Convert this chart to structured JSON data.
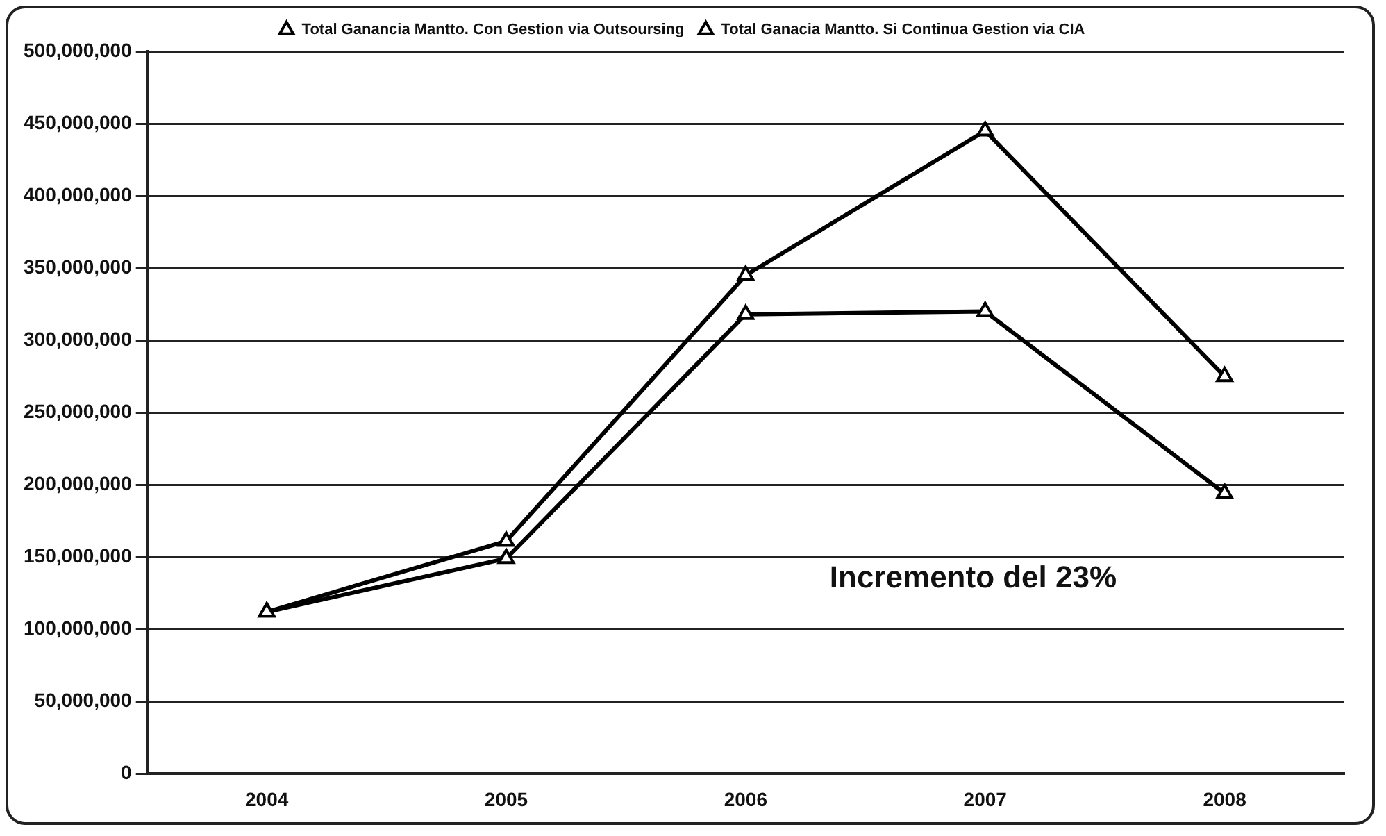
{
  "chart_data": {
    "type": "line",
    "categories": [
      "2004",
      "2005",
      "2006",
      "2007",
      "2008"
    ],
    "series": [
      {
        "name": "Total Ganancia Mantto. Con Gestion via Outsoursing",
        "color": "#000000",
        "values": [
          112000000,
          161000000,
          345000000,
          445000000,
          275000000
        ]
      },
      {
        "name": "Total Ganacia Mantto. Si Continua Gestion via CIA",
        "color": "#000000",
        "values": [
          112000000,
          149000000,
          318000000,
          320000000,
          194000000
        ]
      }
    ],
    "ylim": [
      0,
      500000000
    ],
    "yticks": [
      {
        "value": 0,
        "label": "0"
      },
      {
        "value": 50000000,
        "label": "50,000,000"
      },
      {
        "value": 100000000,
        "label": "100,000,000"
      },
      {
        "value": 150000000,
        "label": "150,000,000"
      },
      {
        "value": 200000000,
        "label": "200,000,000"
      },
      {
        "value": 250000000,
        "label": "250,000,000"
      },
      {
        "value": 300000000,
        "label": "300,000,000"
      },
      {
        "value": 350000000,
        "label": "350,000,000"
      },
      {
        "value": 400000000,
        "label": "400,000,000"
      },
      {
        "value": 450000000,
        "label": "450,000,000"
      },
      {
        "value": 500000000,
        "label": "500,000,000"
      }
    ],
    "grid": "y",
    "legend": "top",
    "marker": "triangle",
    "line_style": "solid",
    "annotations": [
      "Incremento del 23%"
    ]
  }
}
